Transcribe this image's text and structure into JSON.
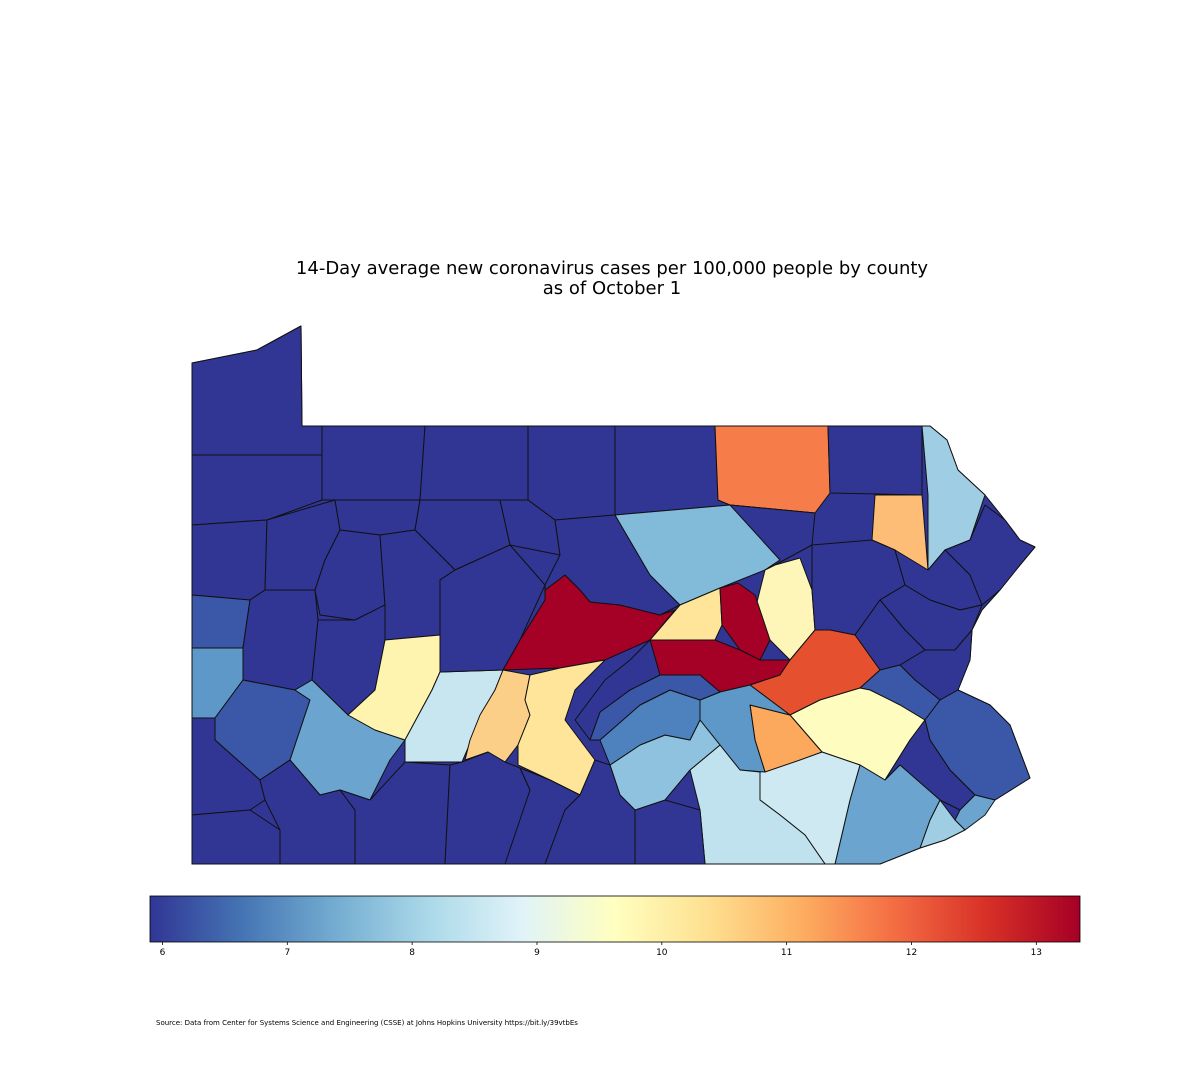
{
  "title": {
    "line1": "14-Day average new coronavirus cases per 100,000 people by county",
    "line2": "as of October 1"
  },
  "map": {
    "region": "Pennsylvania",
    "level": "county",
    "color_scale": "RdYlBu_r"
  },
  "colorbar": {
    "ticks": [
      "6",
      "7",
      "8",
      "9",
      "10",
      "11",
      "12",
      "13"
    ],
    "min": 5.9,
    "max": 13.35,
    "stops": [
      "#313695",
      "#4575b4",
      "#74add1",
      "#abd9e9",
      "#e0f3f8",
      "#ffffbf",
      "#fee090",
      "#fdae61",
      "#f46d43",
      "#d73027",
      "#a50026"
    ]
  },
  "source": "Source: Data from Center for Systems Science and Engineering (CSSE) at Johns Hopkins University https://bit.ly/39vtbEs"
}
